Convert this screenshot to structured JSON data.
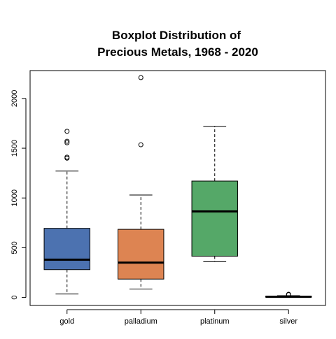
{
  "chart_data": {
    "type": "boxplot",
    "title_lines": [
      "Boxplot Distribution of",
      "Precious Metals, 1968 - 2020"
    ],
    "xlabel": "",
    "ylabel": "",
    "ylim": [
      -80,
      2280
    ],
    "yticks": [
      0,
      500,
      1000,
      1500,
      2000
    ],
    "ytick_labels": [
      "0",
      "500",
      "1000",
      "1500",
      "2000"
    ],
    "grid": false,
    "categories": [
      "gold",
      "palladium",
      "platinum",
      "silver"
    ],
    "colors": {
      "gold": "#4c72b0",
      "palladium": "#dd8452",
      "platinum": "#55a868",
      "silver": "#c44e52"
    },
    "boxes": [
      {
        "name": "gold",
        "whisker_low": 35,
        "q1": 280,
        "median": 380,
        "q3": 695,
        "whisker_high": 1270,
        "outliers": [
          1400,
          1410,
          1555,
          1570,
          1670
        ]
      },
      {
        "name": "palladium",
        "whisker_low": 85,
        "q1": 185,
        "median": 350,
        "q3": 685,
        "whisker_high": 1030,
        "outliers": [
          1535,
          2210
        ]
      },
      {
        "name": "platinum",
        "whisker_low": 360,
        "q1": 415,
        "median": 865,
        "q3": 1170,
        "whisker_high": 1720,
        "outliers": []
      },
      {
        "name": "silver",
        "whisker_low": 2,
        "q1": 4,
        "median": 7,
        "q3": 12,
        "whisker_high": 18,
        "outliers": [
          28,
          32
        ]
      }
    ]
  }
}
